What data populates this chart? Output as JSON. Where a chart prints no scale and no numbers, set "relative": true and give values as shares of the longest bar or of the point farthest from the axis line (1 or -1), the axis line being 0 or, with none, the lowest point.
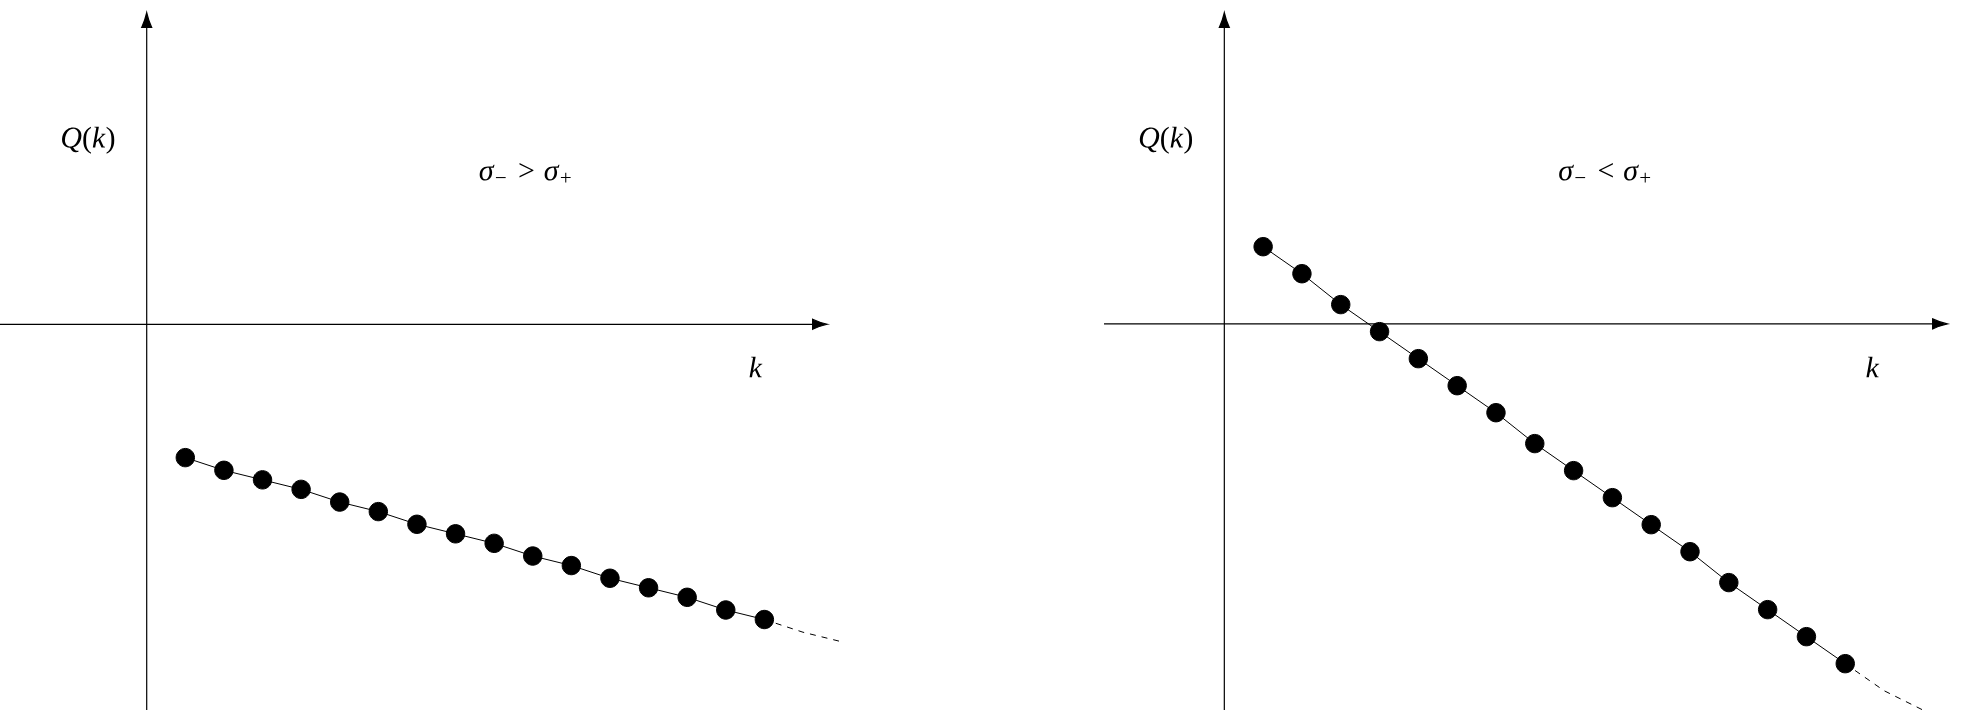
{
  "chart_data": [
    {
      "type": "line",
      "relative": true,
      "ylabel": "*Q*(*k*)",
      "xlabel": "k",
      "annotations": [
        "σ$_{−}$ > σ$_{+}$"
      ],
      "marker": "circle",
      "line_style": "solid",
      "categories": [
        null,
        null,
        null,
        null,
        null,
        null,
        null,
        null,
        null,
        null,
        null,
        null,
        null,
        null,
        null,
        null,
        null,
        null
      ],
      "series": [
        {
          "color": "#000000",
          "values": [
            -0.42,
            -0.46,
            -0.49,
            -0.52,
            -0.56,
            -0.59,
            -0.63,
            -0.66,
            -0.69,
            -0.73,
            -0.76,
            -0.8,
            -0.83,
            -0.86,
            -0.9,
            -0.93,
            null,
            null
          ]
        },
        {
          "color": "#000000",
          "type": "line",
          "marker": "none",
          "line_style": "dashed",
          "values": [
            null,
            null,
            null,
            null,
            null,
            null,
            null,
            null,
            null,
            null,
            null,
            null,
            null,
            null,
            null,
            -0.93,
            -0.97,
            -1
          ]
        }
      ]
    },
    {
      "type": "line",
      "relative": true,
      "ylabel": "*Q*(*k*)",
      "xlabel": "k",
      "annotations": [
        "σ$_{−}$ < σ$_{+}$"
      ],
      "marker": "circle",
      "line_style": "solid",
      "categories": [
        null,
        null,
        null,
        null,
        null,
        null,
        null,
        null,
        null,
        null,
        null,
        null,
        null,
        null,
        null,
        null,
        null,
        null
      ],
      "series": [
        {
          "color": "#000000",
          "values": [
            0.2,
            0.13,
            0.05,
            -0.02,
            -0.09,
            -0.16,
            -0.23,
            -0.31,
            -0.38,
            -0.45,
            -0.52,
            -0.59,
            -0.67,
            -0.74,
            -0.81,
            -0.88,
            null,
            null
          ]
        },
        {
          "color": "#000000",
          "type": "line",
          "marker": "none",
          "line_style": "dashed",
          "values": [
            null,
            null,
            null,
            null,
            null,
            null,
            null,
            null,
            null,
            null,
            null,
            null,
            null,
            null,
            null,
            -0.88,
            -0.95,
            -1
          ]
        }
      ]
    }
  ]
}
